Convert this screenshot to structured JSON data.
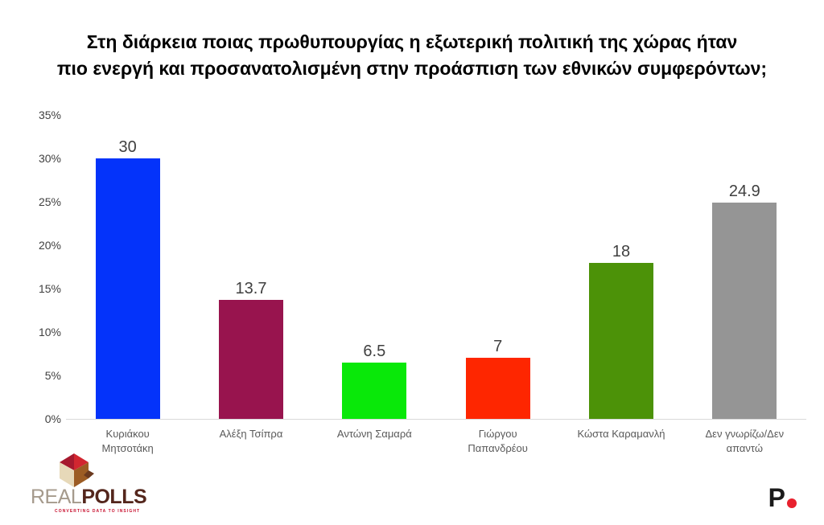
{
  "title": {
    "line1": "Στη διάρκεια ποιας πρωθυπουργίας η εξωτερική πολιτική της χώρας ήταν",
    "line2": "πιο ενεργή και προσανατολισμένη στην προάσπιση των εθνικών συμφερόντων;"
  },
  "chart_data": {
    "type": "bar",
    "title": "Στη διάρκεια ποιας πρωθυπουργίας η εξωτερική πολιτική της χώρας ήταν πιο ενεργή και προσανατολισμένη στην προάσπιση των εθνικών συμφερόντων;",
    "categories": [
      "Κυριάκου Μητσοτάκη",
      "Αλέξη Τσίπρα",
      "Αντώνη Σαμαρά",
      "Γιώργου Παπανδρέου",
      "Κώστα Καραμανλή",
      "Δεν γνωρίζω/Δεν απαντώ"
    ],
    "values": [
      30,
      13.7,
      6.5,
      7,
      18,
      24.9
    ],
    "value_labels": [
      "30",
      "13.7",
      "6.5",
      "7",
      "18",
      "24.9"
    ],
    "bar_colors": [
      "#0433fa",
      "#98144e",
      "#09e809",
      "#fe2600",
      "#4c9208",
      "#959595"
    ],
    "xlabel": "",
    "ylabel": "",
    "ylim": [
      0,
      35
    ],
    "yticks": [
      "35%",
      "30%",
      "25%",
      "20%",
      "15%",
      "10%",
      "5%",
      "0%"
    ],
    "grid": false,
    "legend": false
  },
  "footer": {
    "realpolls": {
      "brand_first": "REAL",
      "brand_second": "POLLS",
      "tagline": "CONVERTING DATA TO INSIGHT",
      "cube_colors": {
        "top_left": "#a6192e",
        "top_right": "#d22630",
        "left": "#e7d9b9",
        "right": "#9c5c24",
        "accent": "#6b3a1f"
      }
    },
    "pronews": {
      "letter": "P"
    }
  },
  "style_colors": {
    "value_label": "#404040",
    "axis_label": "#404040",
    "category_label": "#595959",
    "baseline": "#d9d9d9",
    "pronews_dot": "#e8212e"
  }
}
